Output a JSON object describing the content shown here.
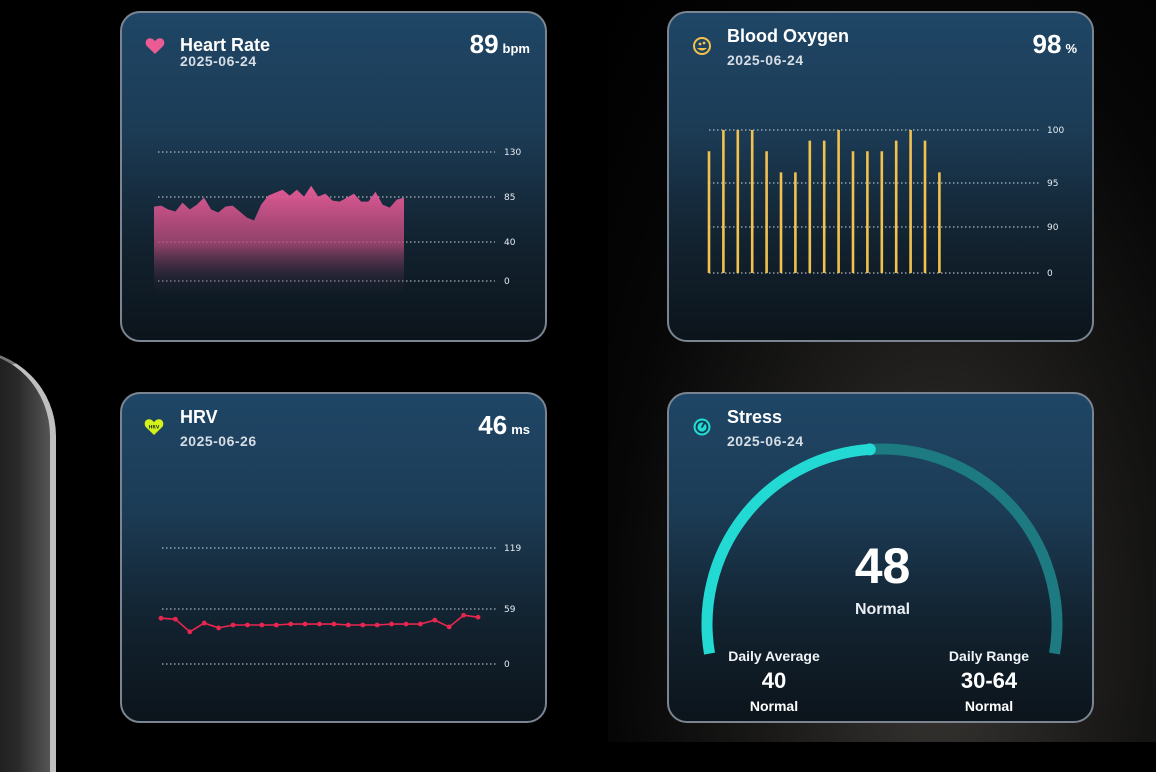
{
  "heart_rate": {
    "title": "Heart Rate",
    "date": "2025-06-24",
    "value": "89",
    "unit": "bpm",
    "color": "#e8559a",
    "chart_data": {
      "type": "area",
      "y_ticks": [
        "130",
        "85",
        "40",
        "0"
      ],
      "ylim": [
        0,
        130
      ],
      "values": [
        75,
        76,
        72,
        70,
        79,
        72,
        77,
        84,
        72,
        69,
        75,
        76,
        70,
        64,
        61,
        77,
        86,
        89,
        92,
        86,
        92,
        85,
        96,
        85,
        88,
        81,
        80,
        84,
        88,
        80,
        80,
        90,
        77,
        74,
        82,
        84
      ]
    }
  },
  "blood_oxygen": {
    "title": "Blood Oxygen",
    "date": "2025-06-24",
    "value": "98",
    "unit": "%",
    "color": "#f2c14e",
    "chart_data": {
      "type": "bar",
      "y_ticks": [
        "100",
        "95",
        "90",
        "0"
      ],
      "values": [
        98,
        100,
        100,
        100,
        98,
        96,
        96,
        99,
        99,
        100,
        98,
        98,
        98,
        99,
        100,
        99,
        96
      ]
    }
  },
  "hrv": {
    "title": "HRV",
    "date": "2025-06-26",
    "value": "46",
    "unit": "ms",
    "color": "#e8264f",
    "icon_label": "HRV",
    "chart_data": {
      "type": "line",
      "y_ticks": [
        "119",
        "59",
        "0"
      ],
      "ylim": [
        0,
        119
      ],
      "values": [
        47,
        46,
        33,
        42,
        37,
        40,
        40,
        40,
        40,
        41,
        41,
        41,
        41,
        40,
        40,
        40,
        41,
        41,
        41,
        45,
        38,
        50,
        48
      ]
    }
  },
  "stress": {
    "title": "Stress",
    "date": "2025-06-24",
    "value": "48",
    "level": "Normal",
    "progress_percent": 48,
    "accent_color": "#23d9d3",
    "track_color": "#1c7a80",
    "daily_average": {
      "label": "Daily Average",
      "value": "40",
      "level": "Normal"
    },
    "daily_range": {
      "label": "Daily Range",
      "value": "30-64",
      "level": "Normal"
    }
  }
}
